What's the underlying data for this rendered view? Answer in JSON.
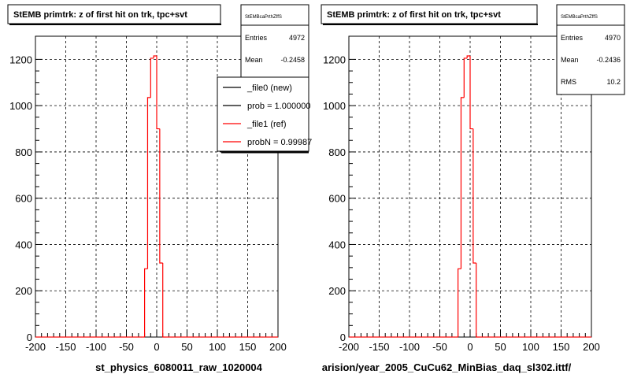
{
  "chart_data": [
    {
      "type": "step",
      "title": "StEMB primtrk: z of first hit on trk, tpc+svt",
      "xlabel": "st_physics_6080011_raw_1020004",
      "xlim": [
        -200,
        200
      ],
      "ylim": [
        0,
        1300
      ],
      "x_ticks": [
        "-200",
        "-150",
        "-100",
        "-50",
        "0",
        "50",
        "100",
        "150",
        "200"
      ],
      "y_ticks": [
        "0",
        "200",
        "400",
        "600",
        "800",
        "1000",
        "1200"
      ],
      "grid": true,
      "bin_width": 5,
      "bins_x_low": [
        -200,
        -195,
        -190,
        -185,
        -180,
        -175,
        -170,
        -165,
        -160,
        -155,
        -150,
        -145,
        -140,
        -135,
        -130,
        -125,
        -120,
        -115,
        -110,
        -105,
        -100,
        -95,
        -90,
        -85,
        -80,
        -75,
        -70,
        -65,
        -60,
        -55,
        -50,
        -45,
        -40,
        -35,
        -30,
        -25,
        -20,
        -15,
        -10,
        -5,
        0,
        5,
        10,
        15,
        20,
        25,
        30,
        35,
        40,
        45,
        50,
        55,
        60,
        65,
        70,
        75,
        80,
        85,
        90,
        95,
        100,
        105,
        110,
        115,
        120,
        125,
        130,
        135,
        140,
        145,
        150,
        155,
        160,
        165,
        170,
        175,
        180,
        185,
        190,
        195
      ],
      "series": [
        {
          "color": "#ff0000",
          "values": [
            0,
            0,
            0,
            0,
            0,
            0,
            0,
            0,
            0,
            0,
            0,
            0,
            0,
            0,
            0,
            0,
            0,
            0,
            0,
            0,
            0,
            0,
            0,
            0,
            0,
            0,
            0,
            0,
            0,
            0,
            0,
            0,
            0,
            0,
            0,
            0,
            295,
            1035,
            1205,
            1215,
            900,
            320,
            0,
            0,
            0,
            0,
            0,
            0,
            0,
            0,
            0,
            0,
            0,
            0,
            0,
            0,
            0,
            0,
            0,
            0,
            0,
            0,
            0,
            0,
            0,
            0,
            0,
            0,
            0,
            0,
            0,
            0,
            0,
            0,
            0,
            0,
            0,
            0,
            0,
            0
          ]
        }
      ],
      "stats": {
        "name": "StEMBcaPrthZffS",
        "rows": [
          {
            "label": "Entries",
            "value": "4972"
          },
          {
            "label": "Mean",
            "value": "-0.2458"
          }
        ]
      },
      "legend": {
        "position": "top-right",
        "entries": [
          {
            "label": "_file0 (new)",
            "color": "#000000"
          },
          {
            "label": "prob = 1.000000",
            "color": "#000000"
          },
          {
            "label": "_file1 (ref)",
            "color": "#ff0000"
          },
          {
            "label": "probN = 0.99987",
            "color": "#ff0000"
          }
        ]
      }
    },
    {
      "type": "step",
      "title": "StEMB primtrk: z of first hit on trk, tpc+svt",
      "xlabel": "arision/year_2005_CuCu62_MinBias_daq_sl302.ittf/",
      "xlim": [
        -200,
        200
      ],
      "ylim": [
        0,
        1300
      ],
      "x_ticks": [
        "-200",
        "-150",
        "-100",
        "-50",
        "0",
        "50",
        "100",
        "150",
        "200"
      ],
      "y_ticks": [
        "0",
        "200",
        "400",
        "600",
        "800",
        "1000",
        "1200"
      ],
      "grid": true,
      "bin_width": 5,
      "bins_x_low": [
        -200,
        -195,
        -190,
        -185,
        -180,
        -175,
        -170,
        -165,
        -160,
        -155,
        -150,
        -145,
        -140,
        -135,
        -130,
        -125,
        -120,
        -115,
        -110,
        -105,
        -100,
        -95,
        -90,
        -85,
        -80,
        -75,
        -70,
        -65,
        -60,
        -55,
        -50,
        -45,
        -40,
        -35,
        -30,
        -25,
        -20,
        -15,
        -10,
        -5,
        0,
        5,
        10,
        15,
        20,
        25,
        30,
        35,
        40,
        45,
        50,
        55,
        60,
        65,
        70,
        75,
        80,
        85,
        90,
        95,
        100,
        105,
        110,
        115,
        120,
        125,
        130,
        135,
        140,
        145,
        150,
        155,
        160,
        165,
        170,
        175,
        180,
        185,
        190,
        195
      ],
      "series": [
        {
          "color": "#ff0000",
          "values": [
            0,
            0,
            0,
            0,
            0,
            0,
            0,
            0,
            0,
            0,
            0,
            0,
            0,
            0,
            0,
            0,
            0,
            0,
            0,
            0,
            0,
            0,
            0,
            0,
            0,
            0,
            0,
            0,
            0,
            0,
            0,
            0,
            0,
            0,
            0,
            0,
            295,
            1035,
            1205,
            1215,
            900,
            320,
            0,
            0,
            0,
            0,
            0,
            0,
            0,
            0,
            0,
            0,
            0,
            0,
            0,
            0,
            0,
            0,
            0,
            0,
            0,
            0,
            0,
            0,
            0,
            0,
            0,
            0,
            0,
            0,
            0,
            0,
            0,
            0,
            0,
            0,
            0,
            0,
            0,
            0
          ]
        }
      ],
      "stats": {
        "name": "StEMBcaPrthZffS",
        "rows": [
          {
            "label": "Entries",
            "value": "4970"
          },
          {
            "label": "Mean",
            "value": "-0.2436"
          },
          {
            "label": "RMS",
            "value": "10.2"
          }
        ]
      }
    }
  ]
}
